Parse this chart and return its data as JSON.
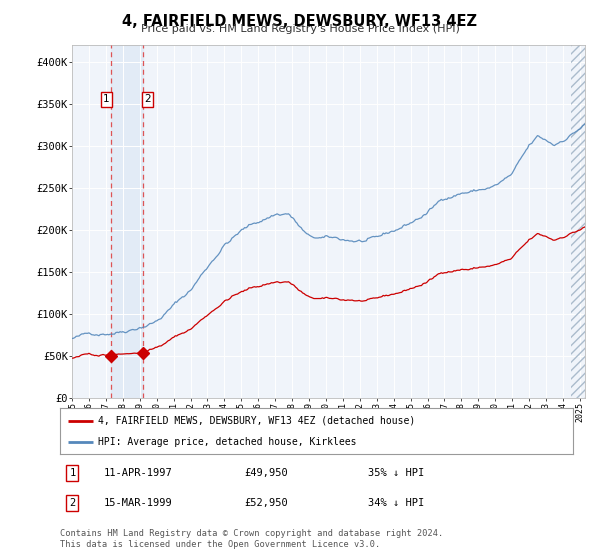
{
  "title": "4, FAIRFIELD MEWS, DEWSBURY, WF13 4EZ",
  "subtitle": "Price paid vs. HM Land Registry's House Price Index (HPI)",
  "legend_line1": "4, FAIRFIELD MEWS, DEWSBURY, WF13 4EZ (detached house)",
  "legend_line2": "HPI: Average price, detached house, Kirklees",
  "footer": "Contains HM Land Registry data © Crown copyright and database right 2024.\nThis data is licensed under the Open Government Licence v3.0.",
  "table": [
    {
      "num": "1",
      "date": "11-APR-1997",
      "price": "£49,950",
      "hpi": "35% ↓ HPI"
    },
    {
      "num": "2",
      "date": "15-MAR-1999",
      "price": "£52,950",
      "hpi": "34% ↓ HPI"
    }
  ],
  "sale1_year": 1997.28,
  "sale1_price": 49950,
  "sale2_year": 1999.21,
  "sale2_price": 52950,
  "hpi_color": "#5588bb",
  "price_color": "#cc0000",
  "vline_color": "#dd4444",
  "background_color": "#ffffff",
  "plot_bg_color": "#f0f4fa",
  "grid_color": "#ffffff",
  "ylim": [
    0,
    420000
  ],
  "xlim_start": 1995.0,
  "xlim_end": 2025.3
}
